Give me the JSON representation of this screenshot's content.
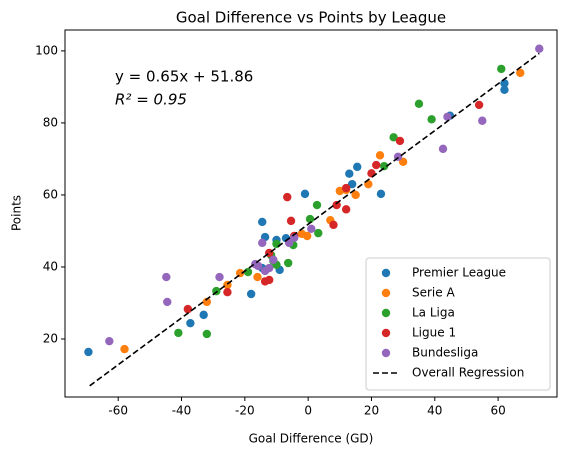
{
  "chart_data": {
    "type": "scatter",
    "title": "Goal Difference vs Points by League",
    "x_label": "Goal Difference (GD)",
    "y_label": "Points",
    "xlim": [
      -76.8,
      78.6
    ],
    "ylim": [
      3.9,
      105.8
    ],
    "xticks": [
      -60,
      -40,
      -20,
      0,
      20,
      40,
      60
    ],
    "yticks": [
      20,
      40,
      60,
      80,
      100
    ],
    "legend": "lower right",
    "annotations": [
      "y = 0.65x + 51.86",
      "R² = 0.95"
    ],
    "series": [
      {
        "name": "Premier League",
        "color": "#1f77b4",
        "x": [
          -69.4,
          -37.2,
          -33,
          -18,
          -14.5,
          -13.6,
          -14.5,
          -9,
          -7,
          -1,
          13,
          13.9,
          15.5,
          23,
          62,
          62,
          44.8,
          -10
        ],
        "values": [
          16.4,
          24.4,
          26.7,
          32.5,
          52.5,
          48.3,
          39.7,
          39.2,
          48,
          60.3,
          65.9,
          63,
          67.8,
          60.3,
          91,
          89.2,
          82,
          47.5
        ]
      },
      {
        "name": "Serie A",
        "color": "#ff7f0e",
        "x": [
          -58,
          -32,
          -25.5,
          -21.5,
          -16,
          -2,
          -0.3,
          7,
          10,
          12,
          15,
          19,
          22.7,
          30,
          67
        ],
        "values": [
          17.2,
          30.3,
          35,
          38.3,
          37.2,
          49.2,
          48.6,
          53,
          61.1,
          61.4,
          60,
          63,
          71,
          69.2,
          93.9
        ]
      },
      {
        "name": "La Liga",
        "color": "#2ca02c",
        "x": [
          -41,
          -32,
          -29,
          -19,
          -11.7,
          -10,
          -10,
          -11,
          -6.3,
          0.6,
          3.2,
          2.8,
          24,
          27,
          35,
          39,
          61,
          -4.7
        ],
        "values": [
          21.7,
          21.4,
          33.3,
          38.6,
          43.3,
          46.4,
          40.6,
          41.7,
          41.1,
          53.3,
          49.4,
          57.2,
          68,
          76,
          85.3,
          81,
          95,
          46.1
        ]
      },
      {
        "name": "Ligue 1",
        "color": "#d62728",
        "x": [
          -38,
          -25.5,
          -13.6,
          -12.3,
          -6.6,
          -5.4,
          -4.4,
          9,
          8,
          12,
          12,
          20,
          21.5,
          29,
          54,
          -12.3
        ],
        "values": [
          28.3,
          33,
          36,
          43.9,
          59.4,
          52.8,
          48.6,
          57.2,
          51.7,
          56,
          61.9,
          66,
          68.3,
          75,
          85,
          36.4
        ]
      },
      {
        "name": "Bundesliga",
        "color": "#9467bd",
        "x": [
          -62.8,
          -44.8,
          -44.5,
          -28,
          -15.8,
          -14.5,
          -13.6,
          -12.3,
          -11,
          -6,
          -4.4,
          1,
          28.4,
          42.6,
          44,
          55,
          73,
          -16.7
        ],
        "values": [
          19.4,
          37.2,
          30.3,
          37.2,
          40.3,
          46.7,
          38.9,
          39.7,
          42,
          46.7,
          48.1,
          50.6,
          70.6,
          72.8,
          81.7,
          80.6,
          100.6,
          40.8
        ]
      }
    ],
    "regression": {
      "name": "Overall Regression",
      "color": "#000000",
      "x": [
        -69,
        73
      ],
      "values": [
        7.01,
        99.31
      ]
    }
  }
}
